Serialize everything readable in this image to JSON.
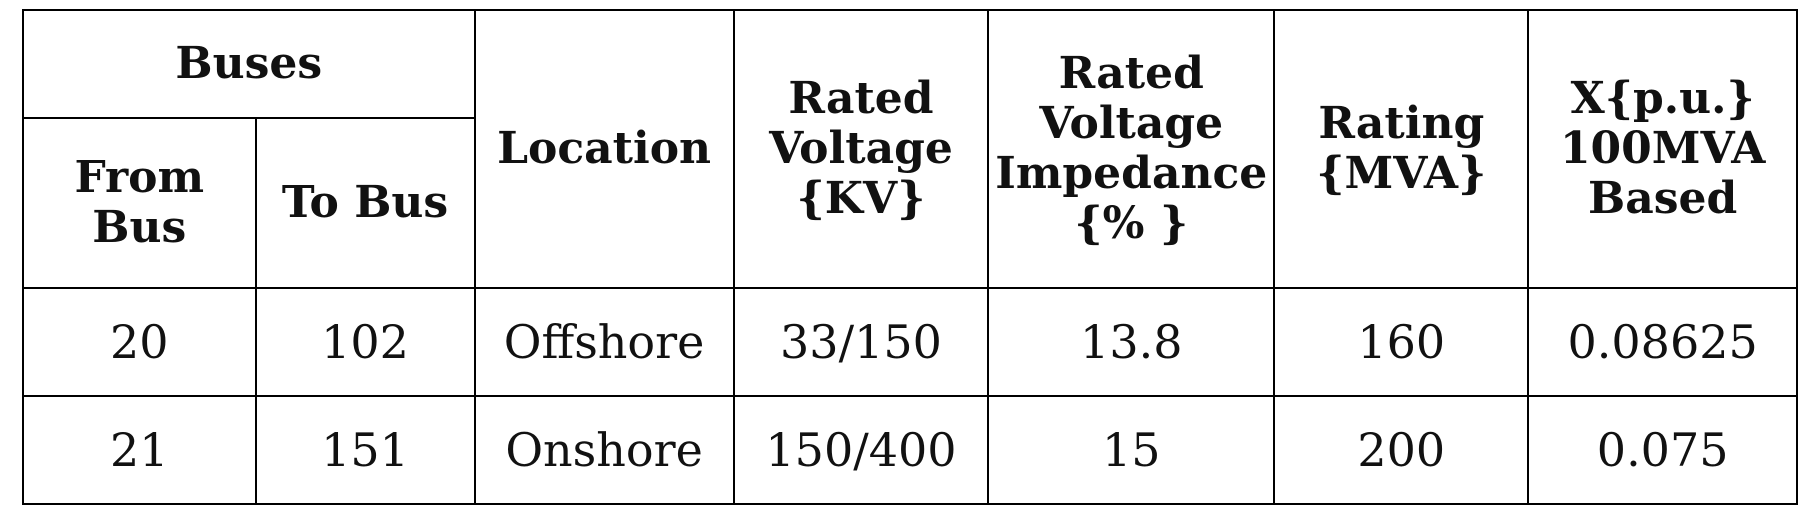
{
  "table": {
    "header": {
      "buses": "Buses",
      "from_bus": "From Bus",
      "to_bus": "To Bus",
      "location": "Location",
      "rated_voltage": "Rated Voltage {KV}",
      "impedance": "Rated Voltage Impedance {% }",
      "rating": "Rating {MVA}",
      "x_pu": "X{p.u.} 100MVA Based"
    },
    "rows": [
      {
        "from_bus": "20",
        "to_bus": "102",
        "location": "Offshore",
        "rated_voltage": "33/150",
        "impedance": "13.8",
        "rating": "160",
        "x_pu": "0.08625"
      },
      {
        "from_bus": "21",
        "to_bus": "151",
        "location": "Onshore",
        "rated_voltage": "150/400",
        "impedance": "15",
        "rating": "200",
        "x_pu": "0.075"
      }
    ]
  }
}
